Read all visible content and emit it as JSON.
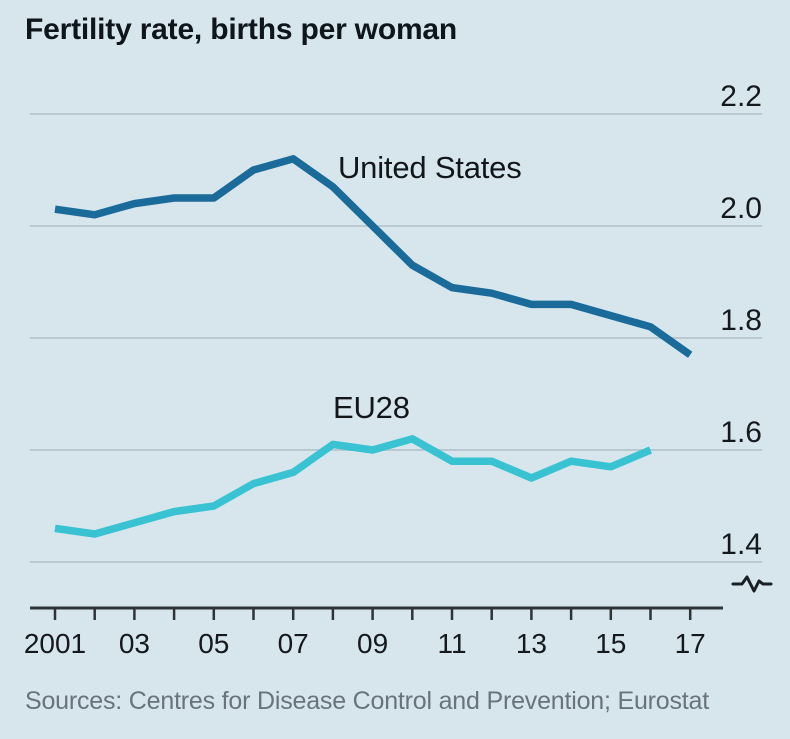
{
  "chart_data": {
    "type": "line",
    "title": "Fertility rate, births per woman",
    "source": "Sources: Centres for Disease Control and Prevention; Eurostat",
    "x": [
      2001,
      2002,
      2003,
      2004,
      2005,
      2006,
      2007,
      2008,
      2009,
      2010,
      2011,
      2012,
      2013,
      2014,
      2015,
      2016,
      2017
    ],
    "series": [
      {
        "name": "United States",
        "color": "#1a6b9a",
        "x": [
          2001,
          2002,
          2003,
          2004,
          2005,
          2006,
          2007,
          2008,
          2009,
          2010,
          2011,
          2012,
          2013,
          2014,
          2015,
          2016,
          2017
        ],
        "values": [
          2.03,
          2.02,
          2.04,
          2.05,
          2.05,
          2.1,
          2.12,
          2.07,
          2.0,
          1.93,
          1.89,
          1.88,
          1.86,
          1.86,
          1.84,
          1.82,
          1.77
        ]
      },
      {
        "name": "EU28",
        "color": "#38c2d2",
        "x": [
          2001,
          2002,
          2003,
          2004,
          2005,
          2006,
          2007,
          2008,
          2009,
          2010,
          2011,
          2012,
          2013,
          2014,
          2015,
          2016
        ],
        "values": [
          1.46,
          1.45,
          1.47,
          1.49,
          1.5,
          1.54,
          1.56,
          1.61,
          1.6,
          1.62,
          1.58,
          1.58,
          1.55,
          1.58,
          1.57,
          1.6
        ]
      }
    ],
    "y_axis": {
      "ticks": [
        "2.2",
        "2.0",
        "1.8",
        "1.6",
        "1.4"
      ],
      "tick_values": [
        2.2,
        2.0,
        1.8,
        1.6,
        1.4
      ],
      "axis_break": true,
      "grid": "horizontal gridlines, labels right side"
    },
    "x_axis": {
      "tick_years": [
        2001,
        2002,
        2003,
        2004,
        2005,
        2006,
        2007,
        2008,
        2009,
        2010,
        2011,
        2012,
        2013,
        2014,
        2015,
        2016,
        2017
      ],
      "labels": [
        {
          "year": 2001,
          "text": "2001"
        },
        {
          "year": 2003,
          "text": "03"
        },
        {
          "year": 2005,
          "text": "05"
        },
        {
          "year": 2007,
          "text": "07"
        },
        {
          "year": 2009,
          "text": "09"
        },
        {
          "year": 2011,
          "text": "11"
        },
        {
          "year": 2013,
          "text": "13"
        },
        {
          "year": 2015,
          "text": "15"
        },
        {
          "year": 2017,
          "text": "17"
        }
      ]
    },
    "legend": "inline series labels on chart",
    "ylim": [
      1.4,
      2.2
    ]
  },
  "colors": {
    "background": "#d7e6ed",
    "gridline": "#b9c8d1",
    "axis": "#2e3338",
    "us_line": "#1a6b9a",
    "eu_line": "#38c2d2",
    "title_text": "#0e161c",
    "source_text": "#69737c"
  }
}
